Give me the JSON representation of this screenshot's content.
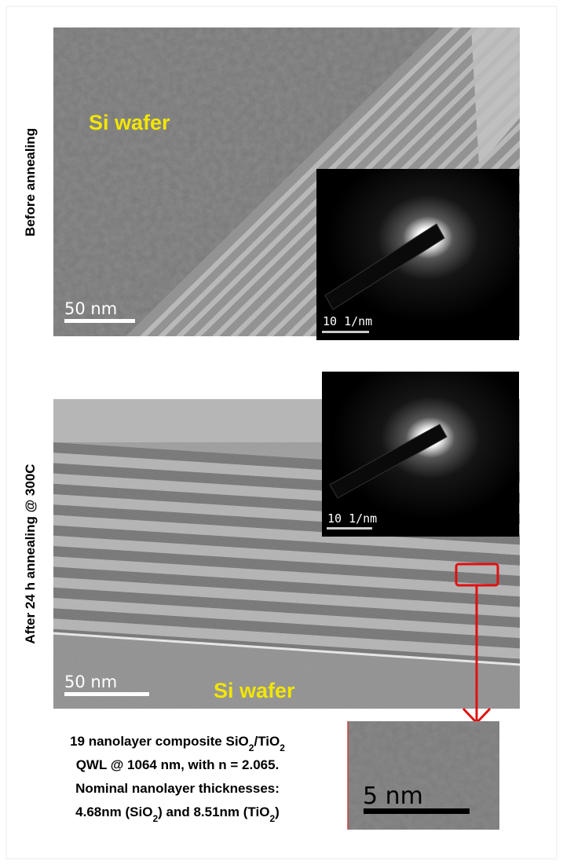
{
  "top_panel": {
    "label": "Before annealing",
    "region_label": "Si wafer",
    "scale_bar": "50 nm",
    "inset_scale_bar": "10 1/nm"
  },
  "bottom_panel": {
    "label": "After 24 h annealing @ 300C",
    "region_label": "Si wafer",
    "scale_bar": "50 nm",
    "inset_scale_bar": "10 1/nm"
  },
  "caption": {
    "lines": [
      [
        {
          "text": "19 nanolayer composite SiO"
        },
        {
          "text": "2",
          "sub": true
        },
        {
          "text": "/TiO"
        },
        {
          "text": "2",
          "sub": true
        }
      ],
      [
        {
          "text": "QWL @ 1064 nm, with n = 2.065."
        }
      ],
      [
        {
          "text": "Nominal nanolayer thicknesses:"
        }
      ],
      [
        {
          "text": "4.68nm (SiO"
        },
        {
          "text": "2",
          "sub": true
        },
        {
          "text": ")  and 8.51nm (TiO"
        },
        {
          "text": "2",
          "sub": true
        },
        {
          "text": ")"
        }
      ]
    ]
  },
  "zoom_panel": {
    "scale_bar": "5 nm"
  }
}
